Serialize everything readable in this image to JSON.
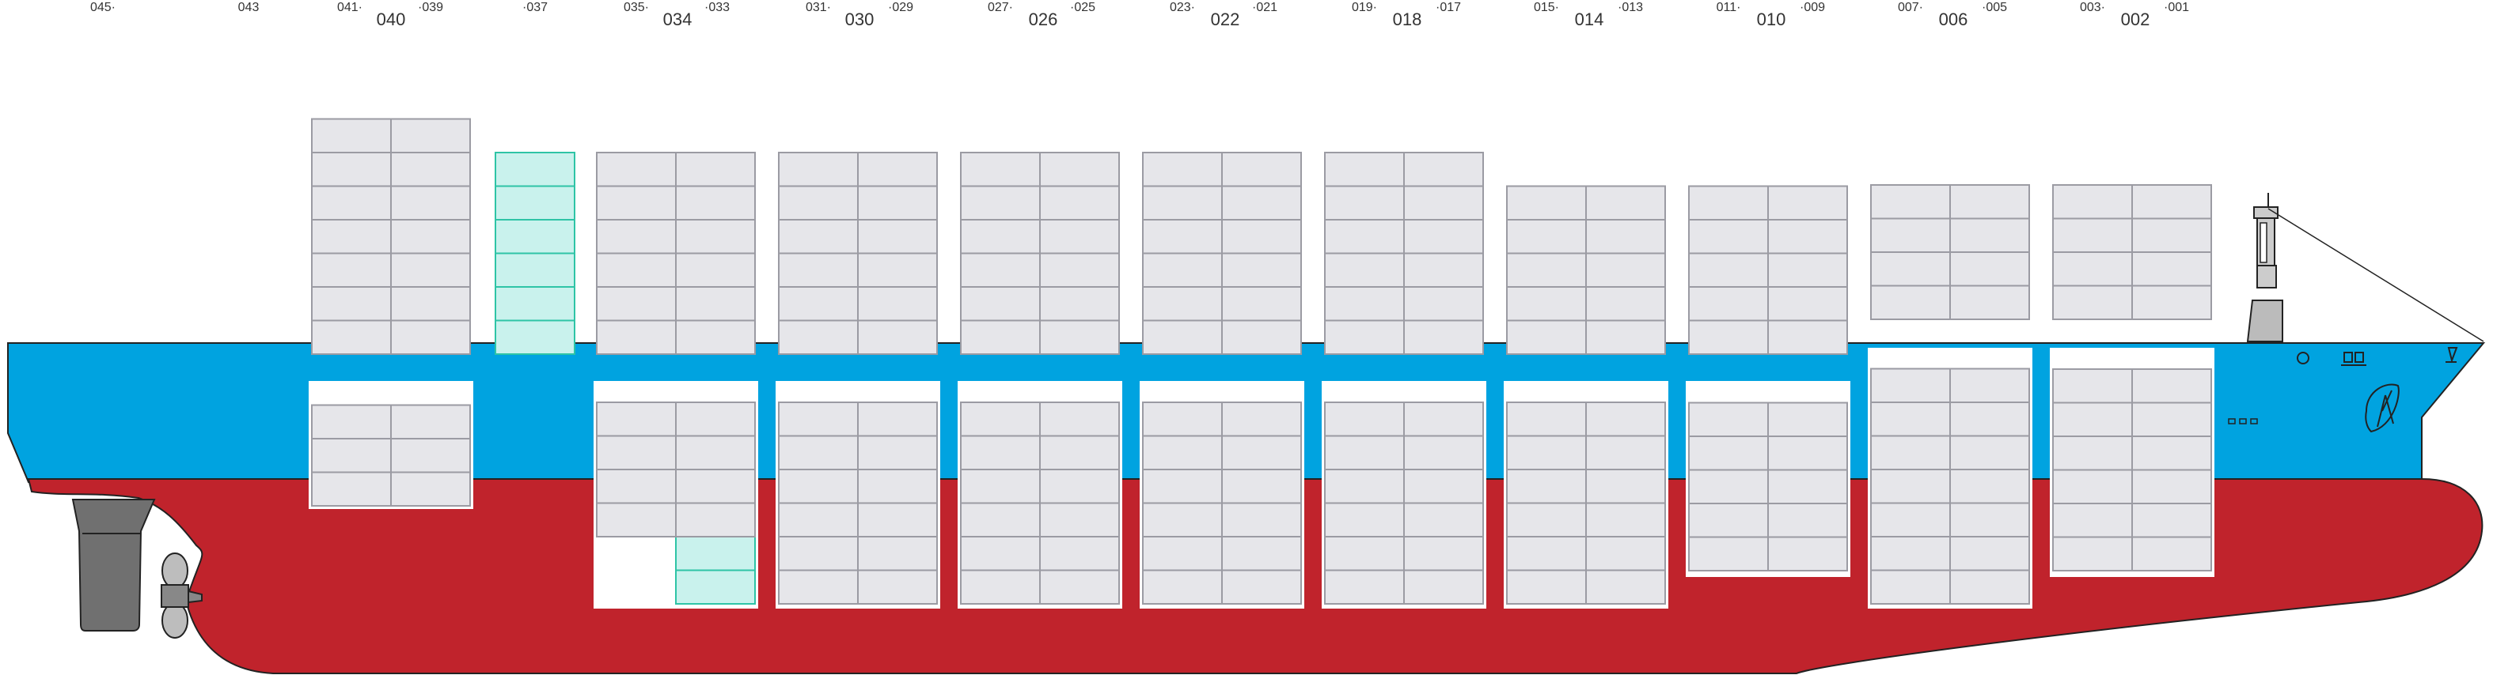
{
  "colors": {
    "hull_red": "#c0232c",
    "hull_blue": "#00a3e0",
    "container": "#e6e6ea",
    "container_stroke": "#9b9ba3",
    "highlight": "#c9f2ed",
    "highlight_stroke": "#2ec4a6",
    "hold_white": "#ffffff",
    "machinery": "#707070",
    "outline": "#222222"
  },
  "icons": [
    "rudder-icon",
    "propeller-icon",
    "bow-thruster-icon",
    "mast-icon",
    "hull-marking-icon"
  ],
  "bay_labels": [
    {
      "id": "045",
      "text": "045·"
    },
    {
      "id": "043",
      "text": "043"
    },
    {
      "id": "041",
      "text": "041·"
    },
    {
      "id": "040",
      "text": "040"
    },
    {
      "id": "039",
      "text": "·039"
    },
    {
      "id": "037",
      "text": "·037"
    },
    {
      "id": "035",
      "text": "035·"
    },
    {
      "id": "034",
      "text": "034"
    },
    {
      "id": "033",
      "text": "·033"
    },
    {
      "id": "031",
      "text": "031·"
    },
    {
      "id": "030",
      "text": "030"
    },
    {
      "id": "029",
      "text": "·029"
    },
    {
      "id": "027",
      "text": "027·"
    },
    {
      "id": "026",
      "text": "026"
    },
    {
      "id": "025",
      "text": "·025"
    },
    {
      "id": "023",
      "text": "023·"
    },
    {
      "id": "022",
      "text": "022"
    },
    {
      "id": "021",
      "text": "·021"
    },
    {
      "id": "019",
      "text": "019·"
    },
    {
      "id": "018",
      "text": "018"
    },
    {
      "id": "017",
      "text": "·017"
    },
    {
      "id": "015",
      "text": "015·"
    },
    {
      "id": "014",
      "text": "014"
    },
    {
      "id": "013",
      "text": "·013"
    },
    {
      "id": "011",
      "text": "011·"
    },
    {
      "id": "010",
      "text": "010"
    },
    {
      "id": "009",
      "text": "·009"
    },
    {
      "id": "007",
      "text": "007·"
    },
    {
      "id": "006",
      "text": "006"
    },
    {
      "id": "005",
      "text": "·005"
    },
    {
      "id": "003",
      "text": "003·"
    },
    {
      "id": "002",
      "text": "002"
    },
    {
      "id": "001",
      "text": "·001"
    }
  ],
  "bays": [
    {
      "id": "040",
      "deck_tiers": 7,
      "hold_tiers": 3
    },
    {
      "id": "037",
      "deck_tiers": 6,
      "hold_tiers": 0,
      "highlight_deck": true
    },
    {
      "id": "034",
      "deck_tiers": 6,
      "hold_tiers": 6,
      "hold_highlight_aft_tiers": 2
    },
    {
      "id": "030",
      "deck_tiers": 6,
      "hold_tiers": 6
    },
    {
      "id": "026",
      "deck_tiers": 6,
      "hold_tiers": 6
    },
    {
      "id": "022",
      "deck_tiers": 6,
      "hold_tiers": 6
    },
    {
      "id": "018",
      "deck_tiers": 6,
      "hold_tiers": 6
    },
    {
      "id": "014",
      "deck_tiers": 5,
      "hold_tiers": 6
    },
    {
      "id": "010",
      "deck_tiers": 5,
      "hold_tiers": 5
    },
    {
      "id": "006",
      "deck_tiers": 4,
      "hold_tiers": 7
    },
    {
      "id": "002",
      "deck_tiers": 4,
      "hold_tiers": 6
    }
  ]
}
